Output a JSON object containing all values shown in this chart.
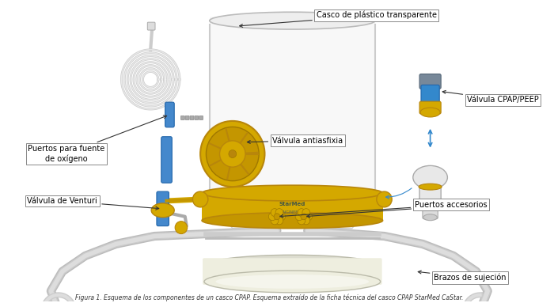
{
  "figsize": [
    7.0,
    3.83
  ],
  "dpi": 100,
  "background_color": "#ffffff",
  "box_style": {
    "boxstyle": "square,pad=0.25",
    "fc": "white",
    "ec": "#888888",
    "lw": 0.7
  },
  "arrow_color_black": "#333333",
  "arrow_color_blue": "#3388cc",
  "arrow_lw": 0.8,
  "labels": {
    "casco": "Casco de plástico transparente",
    "cpap": "Válvula CPAP/PEEP",
    "antiasfixia": "Válvula antiasfixia",
    "puertos_oxigeno": "Puertos para fuente\nde oxígeno",
    "venturi": "Válvula de Venturi",
    "accesorios": "Puertos accesorios",
    "brazos": "Brazos de sujeción"
  },
  "caption": "Figura 1. Esquema de los componentes de un casco CPAP. Esquema extraído de la ficha técnica del casco CPAP StarMed CaStar."
}
